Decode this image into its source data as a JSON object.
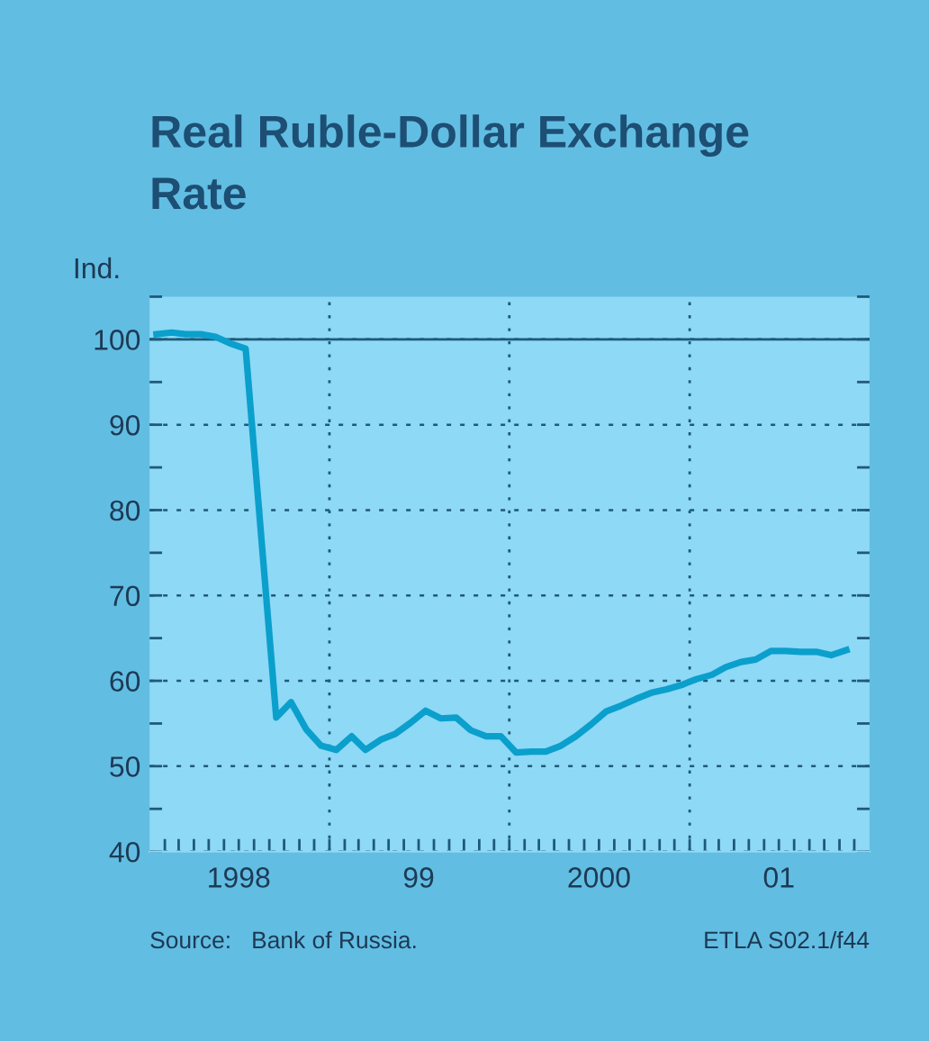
{
  "chart_data": {
    "type": "line",
    "title": "Real Ruble-Dollar Exchange\nRate",
    "ylabel": "Ind.",
    "annotations": [
      "Source:   Bank of Russia.",
      "ETLA S02.1/f44"
    ],
    "x": [
      "1998-01-15",
      "1998-02-15",
      "1998-03-15",
      "1998-04-15",
      "1998-05-15",
      "1998-06-15",
      "1998-07-15",
      "1998-09-15",
      "1998-10-15",
      "1998-11-15",
      "1998-12-15",
      "1999-01-15",
      "1999-02-15",
      "1999-03-15",
      "1999-04-15",
      "1999-05-15",
      "1999-06-15",
      "1999-07-15",
      "1999-08-15",
      "1999-09-15",
      "1999-10-15",
      "1999-11-15",
      "1999-12-15",
      "2000-01-15",
      "2000-02-15",
      "2000-03-15",
      "2000-04-15",
      "2000-05-15",
      "2000-06-15",
      "2000-07-15",
      "2000-08-15",
      "2000-09-15",
      "2000-10-15",
      "2000-11-15",
      "2000-12-15",
      "2001-01-15",
      "2001-02-15",
      "2001-03-15",
      "2001-04-15",
      "2001-05-15",
      "2001-06-15",
      "2001-07-15",
      "2001-08-15",
      "2001-09-15",
      "2001-10-15",
      "2001-11-15"
    ],
    "series": [
      {
        "color": "#0b9fcc",
        "values": [
          100.6,
          100.8,
          100.6,
          100.6,
          100.3,
          99.5,
          98.9,
          55.7,
          57.5,
          54.3,
          52.4,
          51.9,
          53.5,
          51.9,
          53.1,
          53.8,
          55.1,
          56.5,
          55.6,
          55.7,
          54.2,
          53.5,
          53.5,
          51.6,
          51.7,
          51.7,
          52.4,
          53.5,
          54.9,
          56.4,
          57.1,
          57.9,
          58.6,
          59.0,
          59.5,
          60.2,
          60.7,
          61.6,
          62.2,
          62.5,
          63.5,
          63.5,
          63.4,
          63.4,
          63.0,
          63.6
        ]
      }
    ],
    "xlim": [
      "1998-01-01",
      "2002-01-01"
    ],
    "ylim": [
      40,
      105
    ],
    "xticks": [
      {
        "value": "1998-02-01",
        "label": null
      },
      {
        "value": "1998-03-01",
        "label": null
      },
      {
        "value": "1998-04-01",
        "label": null
      },
      {
        "value": "1998-05-01",
        "label": null
      },
      {
        "value": "1998-06-01",
        "label": null
      },
      {
        "value": "1998-07-01",
        "label": "1998"
      },
      {
        "value": "1998-08-01",
        "label": null
      },
      {
        "value": "1998-09-01",
        "label": null
      },
      {
        "value": "1998-10-01",
        "label": null
      },
      {
        "value": "1998-11-01",
        "label": null
      },
      {
        "value": "1998-12-01",
        "label": null
      },
      {
        "value": "1999-01-01",
        "label": null
      },
      {
        "value": "1999-02-01",
        "label": null
      },
      {
        "value": "1999-03-01",
        "label": null
      },
      {
        "value": "1999-04-01",
        "label": null
      },
      {
        "value": "1999-05-01",
        "label": null
      },
      {
        "value": "1999-06-01",
        "label": null
      },
      {
        "value": "1999-07-01",
        "label": "99"
      },
      {
        "value": "1999-08-01",
        "label": null
      },
      {
        "value": "1999-09-01",
        "label": null
      },
      {
        "value": "1999-10-01",
        "label": null
      },
      {
        "value": "1999-11-01",
        "label": null
      },
      {
        "value": "1999-12-01",
        "label": null
      },
      {
        "value": "2000-01-01",
        "label": null
      },
      {
        "value": "2000-02-01",
        "label": null
      },
      {
        "value": "2000-03-01",
        "label": null
      },
      {
        "value": "2000-04-01",
        "label": null
      },
      {
        "value": "2000-05-01",
        "label": null
      },
      {
        "value": "2000-06-01",
        "label": null
      },
      {
        "value": "2000-07-01",
        "label": "2000"
      },
      {
        "value": "2000-08-01",
        "label": null
      },
      {
        "value": "2000-09-01",
        "label": null
      },
      {
        "value": "2000-10-01",
        "label": null
      },
      {
        "value": "2000-11-01",
        "label": null
      },
      {
        "value": "2000-12-01",
        "label": null
      },
      {
        "value": "2001-01-01",
        "label": null
      },
      {
        "value": "2001-02-01",
        "label": null
      },
      {
        "value": "2001-03-01",
        "label": null
      },
      {
        "value": "2001-04-01",
        "label": null
      },
      {
        "value": "2001-05-01",
        "label": null
      },
      {
        "value": "2001-06-01",
        "label": null
      },
      {
        "value": "2001-07-01",
        "label": "01"
      },
      {
        "value": "2001-08-01",
        "label": null
      },
      {
        "value": "2001-09-01",
        "label": null
      },
      {
        "value": "2001-10-01",
        "label": null
      },
      {
        "value": "2001-11-01",
        "label": null
      },
      {
        "value": "2001-12-01",
        "label": null
      }
    ],
    "yticks": [
      40,
      {
        "value": 45,
        "label": null
      },
      50,
      {
        "value": 55,
        "label": null
      },
      60,
      {
        "value": 65,
        "label": null
      },
      70,
      {
        "value": 75,
        "label": null
      },
      80,
      {
        "value": 85,
        "label": null
      },
      90,
      {
        "value": 95,
        "label": null
      },
      100,
      {
        "value": 105,
        "label": null
      }
    ],
    "grid": "y",
    "ref_lines": [
      {
        "axis": "y",
        "value": 100,
        "color": "#1e5a78",
        "line_style": "solid"
      },
      {
        "axis": "x",
        "value": "1999-01-01",
        "color": "#1e5a78",
        "line_style": "dotted"
      },
      {
        "axis": "x",
        "value": "2000-01-01",
        "color": "#1e5a78",
        "line_style": "dotted"
      },
      {
        "axis": "x",
        "value": "2001-01-01",
        "color": "#1e5a78",
        "line_style": "dotted"
      }
    ],
    "line_style": "solid",
    "marker": "none",
    "legend": false
  }
}
